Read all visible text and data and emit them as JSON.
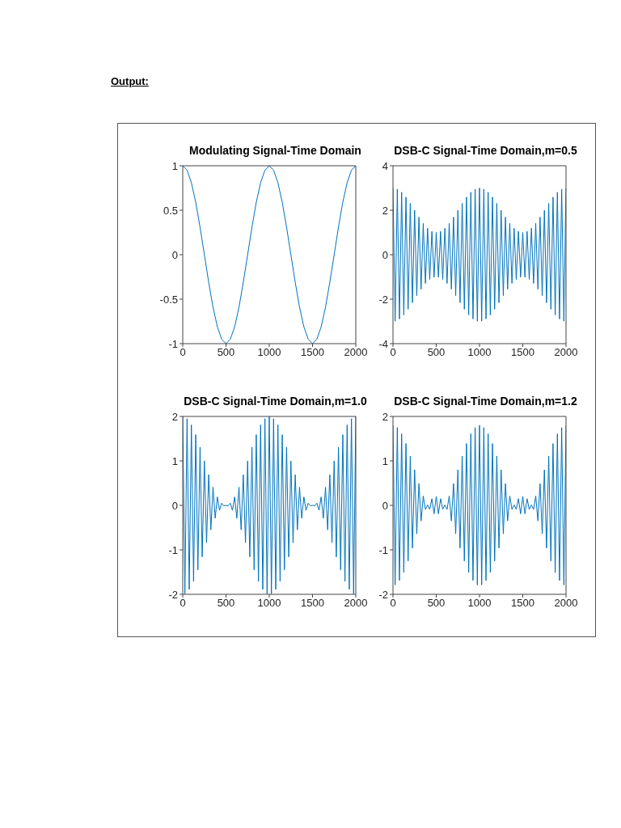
{
  "chart_data": [
    {
      "type": "line",
      "title": "Modulating Signal-Time Domain",
      "annotations": [
        "Output:"
      ],
      "x": [
        0,
        50,
        100,
        150,
        200,
        250,
        300,
        350,
        400,
        450,
        500,
        550,
        600,
        650,
        700,
        750,
        800,
        850,
        900,
        950,
        1000,
        1050,
        1100,
        1150,
        1200,
        1250,
        1300,
        1350,
        1400,
        1450,
        1500,
        1550,
        1600,
        1650,
        1700,
        1750,
        1800,
        1850,
        1900,
        1950,
        2000
      ],
      "series": [
        {
          "color": "#0072bd",
          "values": [
            1,
            0.95,
            0.81,
            0.59,
            0.31,
            0,
            -0.31,
            -0.59,
            -0.81,
            -0.95,
            -1,
            -0.95,
            -0.81,
            -0.59,
            -0.31,
            0,
            0.31,
            0.59,
            0.81,
            0.95,
            1,
            0.95,
            0.81,
            0.59,
            0.31,
            0,
            -0.31,
            -0.59,
            -0.81,
            -0.95,
            -1,
            -0.95,
            -0.81,
            -0.59,
            -0.31,
            0,
            0.31,
            0.59,
            0.81,
            0.95,
            1
          ]
        }
      ],
      "xlim": [
        0,
        2000
      ],
      "xticks": [
        0,
        500,
        1000,
        1500,
        2000
      ],
      "ylim": [
        -1,
        1
      ],
      "yticks": [
        -1,
        -0.5,
        0,
        0.5,
        1
      ]
    },
    {
      "type": "line",
      "title": "DSB-C Signal-Time Domain,m=0.5",
      "x": [
        0,
        25,
        50,
        75,
        100,
        125,
        150,
        175,
        200,
        225,
        250,
        275,
        300,
        325,
        350,
        375,
        400,
        425,
        450,
        475,
        500,
        525,
        550,
        575,
        600,
        625,
        650,
        675,
        700,
        725,
        750,
        775,
        800,
        825,
        850,
        875,
        900,
        925,
        950,
        975,
        1000,
        1025,
        1050,
        1075,
        1100,
        1125,
        1150,
        1175,
        1200,
        1225,
        1250,
        1275,
        1300,
        1325,
        1350,
        1375,
        1400,
        1425,
        1450,
        1475,
        1500,
        1525,
        1550,
        1575,
        1600,
        1625,
        1650,
        1675,
        1700,
        1725,
        1750,
        1775,
        1800,
        1825,
        1850,
        1875,
        1900,
        1925,
        1950,
        1975,
        2000
      ],
      "series": [
        {
          "color": "#0072bd",
          "values": [
            3,
            -2.99,
            2.95,
            -2.89,
            2.81,
            -2.71,
            2.59,
            -2.45,
            2.31,
            -2.16,
            2,
            -1.84,
            1.69,
            -1.55,
            1.41,
            -1.29,
            1.19,
            -1.11,
            1.05,
            -1.01,
            1,
            -1.01,
            1.05,
            -1.11,
            1.19,
            -1.29,
            1.41,
            -1.55,
            1.69,
            -1.84,
            2,
            -2.16,
            2.31,
            -2.45,
            2.59,
            -2.71,
            2.81,
            -2.89,
            2.95,
            -2.99,
            3,
            -2.99,
            2.95,
            -2.89,
            2.81,
            -2.71,
            2.59,
            -2.45,
            2.31,
            -2.16,
            2,
            -1.84,
            1.69,
            -1.55,
            1.41,
            -1.29,
            1.19,
            -1.11,
            1.05,
            -1.01,
            1,
            -1.01,
            1.05,
            -1.11,
            1.19,
            -1.29,
            1.41,
            -1.55,
            1.69,
            -1.84,
            2,
            -2.16,
            2.31,
            -2.45,
            2.59,
            -2.71,
            2.81,
            -2.89,
            2.95,
            -2.99,
            3
          ]
        }
      ],
      "xlim": [
        0,
        2000
      ],
      "xticks": [
        0,
        500,
        1000,
        1500,
        2000
      ],
      "ylim": [
        -4,
        4
      ],
      "yticks": [
        -4,
        -2,
        0,
        2,
        4
      ]
    },
    {
      "type": "line",
      "title": "DSB-C Signal-Time Domain,m=1.0",
      "x": [
        0,
        25,
        50,
        75,
        100,
        125,
        150,
        175,
        200,
        225,
        250,
        275,
        300,
        325,
        350,
        375,
        400,
        425,
        450,
        475,
        500,
        525,
        550,
        575,
        600,
        625,
        650,
        675,
        700,
        725,
        750,
        775,
        800,
        825,
        850,
        875,
        900,
        925,
        950,
        975,
        1000,
        1025,
        1050,
        1075,
        1100,
        1125,
        1150,
        1175,
        1200,
        1225,
        1250,
        1275,
        1300,
        1325,
        1350,
        1375,
        1400,
        1425,
        1450,
        1475,
        1500,
        1525,
        1550,
        1575,
        1600,
        1625,
        1650,
        1675,
        1700,
        1725,
        1750,
        1775,
        1800,
        1825,
        1850,
        1875,
        1900,
        1925,
        1950,
        1975,
        2000
      ],
      "series": [
        {
          "color": "#0072bd",
          "values": [
            2,
            -1.99,
            1.95,
            -1.89,
            1.81,
            -1.71,
            1.59,
            -1.45,
            1.31,
            -1.16,
            1,
            -0.84,
            0.69,
            -0.55,
            0.41,
            -0.29,
            0.19,
            -0.11,
            0.05,
            -0.01,
            0,
            -0.01,
            0.05,
            -0.11,
            0.19,
            -0.29,
            0.41,
            -0.55,
            0.69,
            -0.84,
            1,
            -1.16,
            1.31,
            -1.45,
            1.59,
            -1.71,
            1.81,
            -1.89,
            1.95,
            -1.99,
            2,
            -1.99,
            1.95,
            -1.89,
            1.81,
            -1.71,
            1.59,
            -1.45,
            1.31,
            -1.16,
            1,
            -0.84,
            0.69,
            -0.55,
            0.41,
            -0.29,
            0.19,
            -0.11,
            0.05,
            -0.01,
            0,
            -0.01,
            0.05,
            -0.11,
            0.19,
            -0.29,
            0.41,
            -0.55,
            0.69,
            -0.84,
            1,
            -1.16,
            1.31,
            -1.45,
            1.59,
            -1.71,
            1.81,
            -1.89,
            1.95,
            -1.99,
            2
          ]
        }
      ],
      "xlim": [
        0,
        2000
      ],
      "xticks": [
        0,
        500,
        1000,
        1500,
        2000
      ],
      "ylim": [
        -2,
        2
      ],
      "yticks": [
        -2,
        -1,
        0,
        1,
        2
      ]
    },
    {
      "type": "line",
      "title": "DSB-C Signal-Time Domain,m=1.2",
      "x": [
        0,
        25,
        50,
        75,
        100,
        125,
        150,
        175,
        200,
        225,
        250,
        275,
        300,
        325,
        350,
        375,
        400,
        425,
        450,
        475,
        500,
        525,
        550,
        575,
        600,
        625,
        650,
        675,
        700,
        725,
        750,
        775,
        800,
        825,
        850,
        875,
        900,
        925,
        950,
        975,
        1000,
        1025,
        1050,
        1075,
        1100,
        1125,
        1150,
        1175,
        1200,
        1225,
        1250,
        1275,
        1300,
        1325,
        1350,
        1375,
        1400,
        1425,
        1450,
        1475,
        1500,
        1525,
        1550,
        1575,
        1600,
        1625,
        1650,
        1675,
        1700,
        1725,
        1750,
        1775,
        1800,
        1825,
        1850,
        1875,
        1900,
        1925,
        1950,
        1975,
        2000
      ],
      "series": [
        {
          "color": "#0072bd",
          "values": [
            1.8,
            -1.79,
            1.75,
            -1.69,
            1.61,
            -1.51,
            1.39,
            -1.25,
            1.11,
            -0.96,
            0.8,
            -0.64,
            0.49,
            -0.35,
            0.21,
            -0.09,
            0.01,
            -0.09,
            0.15,
            -0.19,
            0.2,
            -0.19,
            0.15,
            -0.09,
            0.01,
            -0.09,
            0.21,
            -0.35,
            0.49,
            -0.64,
            0.8,
            -0.96,
            1.11,
            -1.25,
            1.39,
            -1.51,
            1.61,
            -1.69,
            1.75,
            -1.79,
            1.8,
            -1.79,
            1.75,
            -1.69,
            1.61,
            -1.51,
            1.39,
            -1.25,
            1.11,
            -0.96,
            0.8,
            -0.64,
            0.49,
            -0.35,
            0.21,
            -0.09,
            0.01,
            -0.09,
            0.15,
            -0.19,
            0.2,
            -0.19,
            0.15,
            -0.09,
            0.01,
            -0.09,
            0.21,
            -0.35,
            0.49,
            -0.64,
            0.8,
            -0.96,
            1.11,
            -1.25,
            1.39,
            -1.51,
            1.61,
            -1.69,
            1.75,
            -1.79,
            1.8
          ]
        }
      ],
      "xlim": [
        0,
        2000
      ],
      "xticks": [
        0,
        500,
        1000,
        1500,
        2000
      ],
      "ylim": [
        -2,
        2
      ],
      "yticks": [
        -2,
        -1,
        0,
        1,
        2
      ]
    }
  ]
}
